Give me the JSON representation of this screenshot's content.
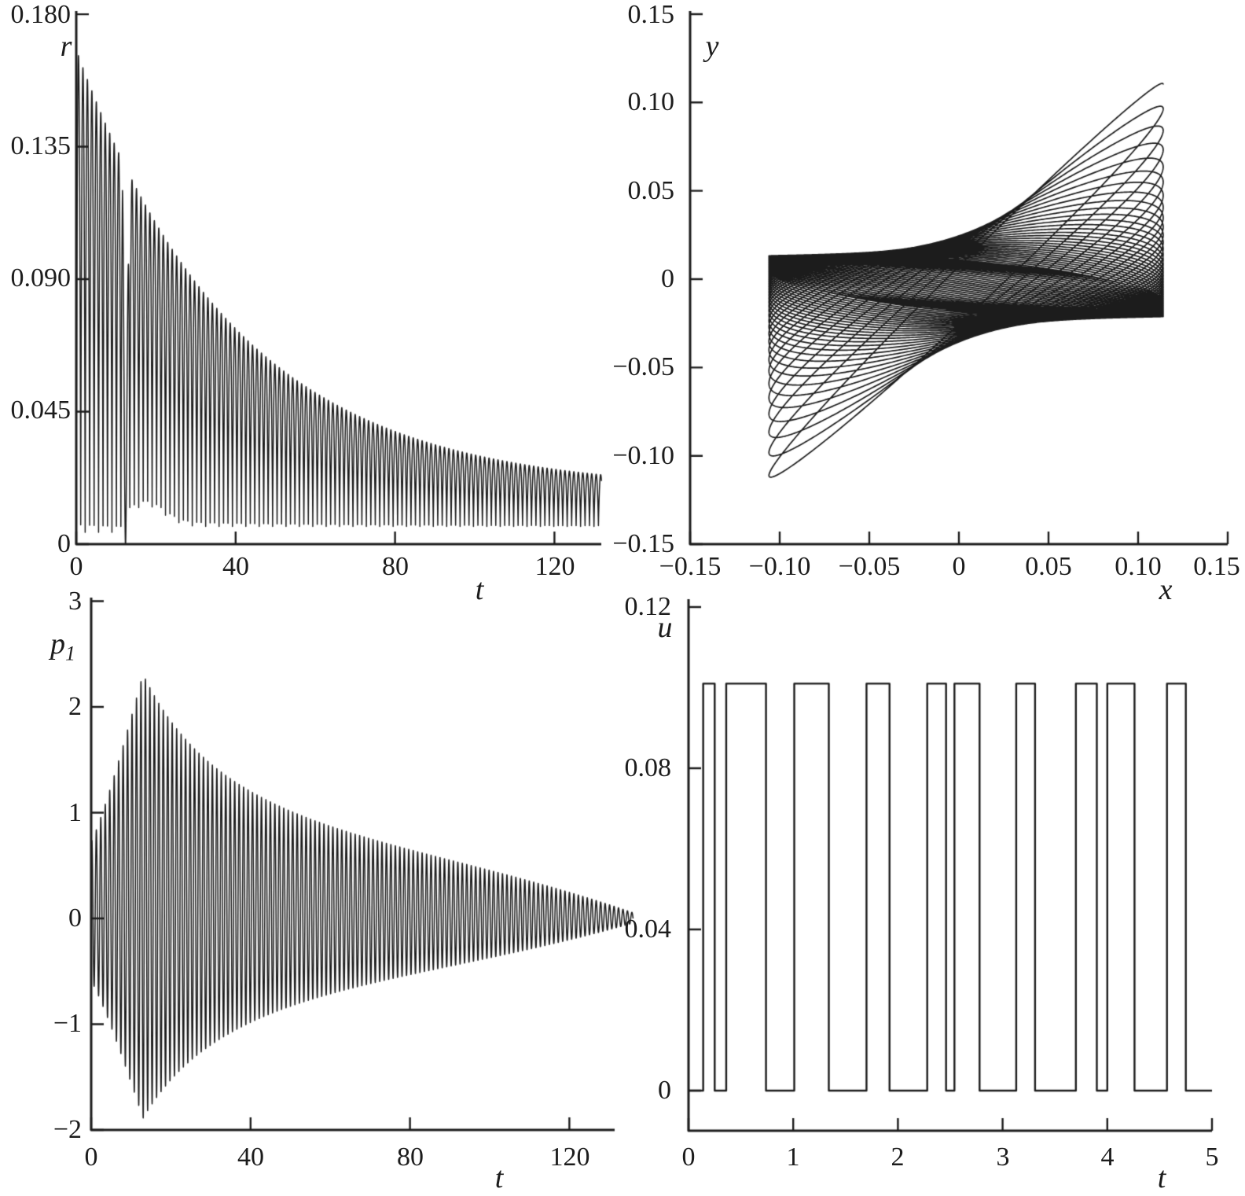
{
  "figure": {
    "background": "#ffffff",
    "line_color": "#1c1c1c",
    "description": "2x2 grid of black-and-white scientific line plots: r(t) decaying oscillation, y-x phase portrait spiral, p1(t) growing-then-decaying oscillation, u(t) bang-bang square-wave control."
  },
  "chart_data": [
    {
      "id": "r-vs-t",
      "type": "line",
      "quadrant": "top-left",
      "title": "",
      "xlabel": "t",
      "ylabel": "r",
      "xlim": [
        0,
        131.8
      ],
      "ylim": [
        0,
        0.18
      ],
      "xticks": [
        "0",
        "40",
        "80",
        "120"
      ],
      "xtick_values": [
        0,
        40,
        80,
        120
      ],
      "yticks": [
        "0.180",
        "0.135",
        "0.090",
        "0.045",
        "0"
      ],
      "ytick_values": [
        0.18,
        0.135,
        0.09,
        0.045,
        0
      ],
      "grid": false,
      "legend": null,
      "series": [
        {
          "name": "r(t)",
          "render": "rectified_oscillation",
          "spike_period": 1.12,
          "spike_power": 0.8,
          "envelope_hi": {
            "base": 0.018,
            "amp": 0.15,
            "tau": 40
          },
          "envelope_lo": {
            "early": 0.004,
            "base": 0.006,
            "bump_amp": 0.007,
            "bump_center": 17.5,
            "bump_sigma2": 40
          },
          "zero_notch": {
            "t": 12.4,
            "half_width": 0.8
          },
          "t_start": 0.02,
          "t_end": 131.8
        }
      ],
      "key_features": "Spiky rectified oscillation; upper envelope decays from ~0.165 at t=2 to ~0.025 at t=130; lower envelope near 0.005-0.013; single dip to exactly 0 at t~12."
    },
    {
      "id": "y-vs-x-phase",
      "type": "line",
      "quadrant": "top-right",
      "title": "",
      "xlabel": "x",
      "ylabel": "y",
      "xlim": [
        -0.15,
        0.15
      ],
      "ylim": [
        -0.15,
        0.15
      ],
      "xticks": [
        "−0.15",
        "−0.10",
        "−0.05",
        "0",
        "0.05",
        "0.10",
        "0.15"
      ],
      "xtick_values": [
        -0.15,
        -0.1,
        -0.05,
        0,
        0.05,
        0.1,
        0.15
      ],
      "yticks": [
        "0.15",
        "0.10",
        "0.05",
        "0",
        "−0.05",
        "−0.10",
        "−0.15"
      ],
      "ytick_values": [
        0.15,
        0.1,
        0.05,
        0,
        -0.05,
        -0.1,
        -0.15
      ],
      "grid": false,
      "legend": null,
      "series": [
        {
          "name": "phase trajectory",
          "render": "phase_spiral",
          "orbit_period": 2.24,
          "x_amp": 0.11,
          "x_offset": 0.004,
          "y_amp_base": 0.017,
          "y_amp_decay": 0.098,
          "y_tau": 16,
          "y_offset": -0.004,
          "phase0": 0.12,
          "phase_drift": 0.03,
          "t_end": 135
        }
      ],
      "key_features": "Nested precessing elliptical loops: outer lens-shaped loops with tips near (-0.105,-0.125) and (0.10,0.10) collapsing into a dense flat dark elliptical band spanning x in [-0.106,0.114], y in [-0.023,0.015]."
    },
    {
      "id": "p1-vs-t",
      "type": "line",
      "quadrant": "bottom-left",
      "title": "",
      "xlabel": "t",
      "ylabel": "p",
      "ylabel_sub": "1",
      "xlim": [
        0,
        131.4
      ],
      "ylim": [
        -2,
        3
      ],
      "xticks": [
        "0",
        "40",
        "80",
        "120"
      ],
      "xtick_values": [
        0,
        40,
        80,
        120
      ],
      "yticks": [
        "3",
        "2",
        "1",
        "0",
        "−1",
        "−2"
      ],
      "ytick_values": [
        3,
        2,
        1,
        0,
        -1,
        -2
      ],
      "grid": false,
      "legend": null,
      "series": [
        {
          "name": "p1(t)",
          "render": "modulated_oscillation",
          "period": 1.12,
          "phase": 0.6,
          "amp_start": 0.66,
          "amp_peak": 2.1,
          "t_peak": 13,
          "grow_power": 1.15,
          "decay_a": 0.034,
          "pinch_t_span": 127,
          "pinch_power": 4,
          "offset_frac": 0.1,
          "t_end": 136
        }
      ],
      "key_features": "Dense oscillation; amplitude grows from ~0.7 at t=0 to max ~+2.35 / min ~-1.9 at t~13, then decays slowly, pinching to ~0 with a tiny squiggle at t~135."
    },
    {
      "id": "u-vs-t",
      "type": "step",
      "quadrant": "bottom-right",
      "title": "",
      "xlabel": "t",
      "ylabel": "u",
      "xlim": [
        0,
        5
      ],
      "ylim": [
        -0.01,
        0.12
      ],
      "xticks": [
        "0",
        "1",
        "2",
        "3",
        "4",
        "5"
      ],
      "xtick_values": [
        0,
        1,
        2,
        3,
        4,
        5
      ],
      "yticks": [
        "0.12",
        "0.08",
        "0.04",
        "0"
      ],
      "ytick_values": [
        0.12,
        0.08,
        0.04,
        0
      ],
      "grid": false,
      "legend": null,
      "series": [
        {
          "name": "u(t)",
          "render": "pulse_train",
          "low": 0,
          "high": 0.101,
          "pulses": [
            [
              0.14,
              0.25
            ],
            [
              0.36,
              0.74
            ],
            [
              1.01,
              1.34
            ],
            [
              1.7,
              1.92
            ],
            [
              2.28,
              2.46
            ],
            [
              2.54,
              2.78
            ],
            [
              3.13,
              3.31
            ],
            [
              3.7,
              3.9
            ],
            [
              4.0,
              4.26
            ],
            [
              4.57,
              4.75
            ]
          ],
          "t_end": 5
        }
      ],
      "key_features": "Bang-bang control signal switching between u=0 and u~0.101 ten times over t in [0,5]."
    }
  ]
}
